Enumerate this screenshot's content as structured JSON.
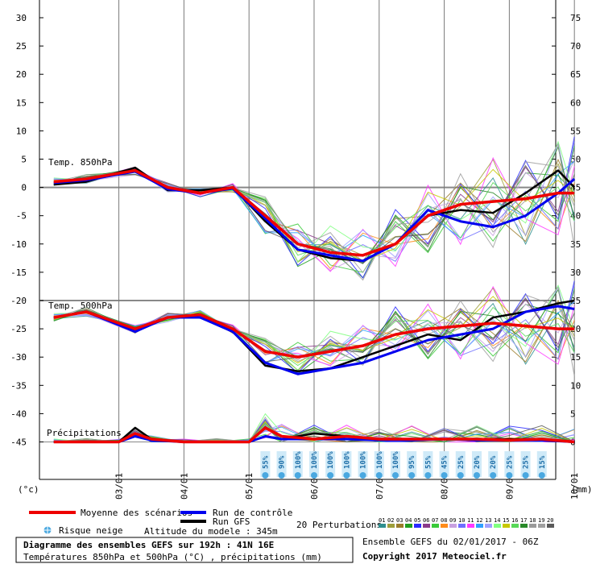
{
  "chart_data": {
    "type": "line",
    "x_unit": "days from 02/01 06Z",
    "x_range": [
      0,
      8
    ],
    "date_labels": [
      "03/01",
      "04/01",
      "05/01",
      "06/01",
      "07/01",
      "08/01",
      "09/01",
      "10/01"
    ],
    "left_axis": {
      "unit": "(°c)",
      "ticks": [
        30,
        25,
        20,
        15,
        10,
        5,
        0,
        -5,
        -10,
        -15,
        -20,
        -25,
        -30,
        -35,
        -40,
        -45
      ]
    },
    "right_axis": {
      "unit": "(mm)",
      "ticks": [
        75,
        70,
        65,
        60,
        55,
        50,
        45,
        40,
        35,
        30,
        25,
        20,
        15,
        10,
        5,
        0
      ]
    },
    "panel_labels": {
      "t850": "Temp. 850hPa",
      "t500": "Temp. 500hPa",
      "precip": "Précipitations"
    },
    "t850": {
      "x": [
        0,
        0.5,
        1.25,
        1.75,
        2.25,
        2.75,
        3.25,
        3.75,
        4.25,
        4.75,
        5.25,
        5.75,
        6.25,
        6.75,
        7.25,
        7.75,
        8
      ],
      "mean": [
        1,
        1.5,
        3,
        0,
        -1,
        0,
        -5,
        -10,
        -11.5,
        -12,
        -10,
        -5,
        -3,
        -2.5,
        -2,
        -1,
        -1
      ],
      "control": [
        0.8,
        1.3,
        2.8,
        -0.3,
        -1,
        -0.2,
        -5.5,
        -11,
        -12,
        -13,
        -10,
        -4,
        -6,
        -7,
        -5,
        -1,
        1.5
      ],
      "gfs": [
        0.5,
        1,
        3.5,
        -0.5,
        -0.5,
        0,
        -6,
        -11,
        -12.5,
        -13,
        -10,
        -5,
        -4,
        -4.5,
        -1,
        3,
        0
      ]
    },
    "t500": {
      "x": [
        0,
        0.5,
        1.25,
        1.75,
        2.25,
        2.75,
        3.25,
        3.75,
        4.25,
        4.75,
        5.25,
        5.75,
        6.25,
        6.75,
        7.25,
        7.75,
        8
      ],
      "mean": [
        -23,
        -22,
        -25,
        -23,
        -22.5,
        -25,
        -29,
        -30,
        -29,
        -28,
        -26,
        -25,
        -24.5,
        -24,
        -24.5,
        -25,
        -25
      ],
      "control": [
        -23,
        -22,
        -25.5,
        -23,
        -23,
        -25.5,
        -31,
        -33,
        -32,
        -31,
        -29,
        -27,
        -26,
        -25,
        -22,
        -21,
        -21.5
      ],
      "gfs": [
        -23,
        -22,
        -25,
        -23,
        -22.5,
        -25.5,
        -31.5,
        -32.5,
        -32,
        -30,
        -28,
        -26,
        -27,
        -23,
        -22,
        -20.5,
        -20
      ]
    },
    "precip": {
      "x": [
        0,
        0.5,
        1,
        1.25,
        1.5,
        2,
        2.5,
        3,
        3.25,
        3.5,
        4,
        4.5,
        5,
        5.5,
        6,
        6.5,
        7,
        7.5,
        8
      ],
      "mean": [
        0,
        0,
        0,
        1.5,
        0.5,
        0,
        0,
        0,
        2.5,
        1,
        0.5,
        1,
        0.5,
        0.5,
        0.5,
        0.5,
        0.3,
        0.5,
        0
      ],
      "control": [
        0,
        0,
        0,
        1,
        0.3,
        0,
        0,
        0,
        1,
        0.5,
        0.5,
        0.5,
        0.3,
        0.3,
        0.5,
        0.3,
        0.3,
        0.3,
        0
      ],
      "gfs": [
        0,
        0,
        0,
        2.5,
        0.5,
        0,
        0,
        0,
        1,
        0.5,
        1.5,
        1,
        0.5,
        0.3,
        0.5,
        0.5,
        0.5,
        0.5,
        0
      ]
    },
    "snow_risk": {
      "x": [
        3.25,
        3.5,
        3.75,
        4,
        4.25,
        4.5,
        4.75,
        5,
        5.25,
        5.5,
        5.75,
        6,
        6.25,
        6.5,
        6.75,
        7,
        7.25,
        7.5
      ],
      "values": [
        "55%",
        "90%",
        "100%",
        "100%",
        "100%",
        "100%",
        "100%",
        "100%",
        "100%",
        "95%",
        "55%",
        "45%",
        "25%",
        "20%",
        "20%",
        "25%",
        "25%",
        "15%"
      ]
    },
    "perturbations": {
      "labels": [
        "01",
        "02",
        "03",
        "04",
        "05",
        "06",
        "07",
        "08",
        "09",
        "10",
        "11",
        "12",
        "13",
        "14",
        "15",
        "16",
        "17",
        "18",
        "19",
        "20"
      ],
      "colors": [
        "#2f8f8f",
        "#9e9e3a",
        "#9a7c2a",
        "#1f9f1f",
        "#2a2aff",
        "#8a3a8a",
        "#3acb3a",
        "#ff8c1a",
        "#c8a0e0",
        "#6f6fff",
        "#ff3aff",
        "#2fa0ff",
        "#a0a0ff",
        "#7fff7f",
        "#c8c800",
        "#58d858",
        "#2a8a2a",
        "#9a9a9a",
        "#a0a0a0",
        "#5a5a5a"
      ]
    }
  },
  "legend": {
    "mean": "Moyenne des scénarios",
    "control": "Run de contrôle",
    "gfs": "Run GFS",
    "snow": "Risque neige",
    "altitude": "Altitude du modele : 345m",
    "perturbations": "20 Perturbations",
    "colors": {
      "mean": "#ee0000",
      "control": "#0000ee",
      "gfs": "#000000"
    }
  },
  "footer": {
    "title": "Diagramme des ensembles GEFS sur 192h : 41N 16E",
    "subtitle": "Températures 850hPa et 500hPa (°C) , précipitations (mm)",
    "run": "Ensemble GEFS du 02/01/2017 - 06Z",
    "copyright": "Copyright 2017 Meteociel.fr"
  }
}
